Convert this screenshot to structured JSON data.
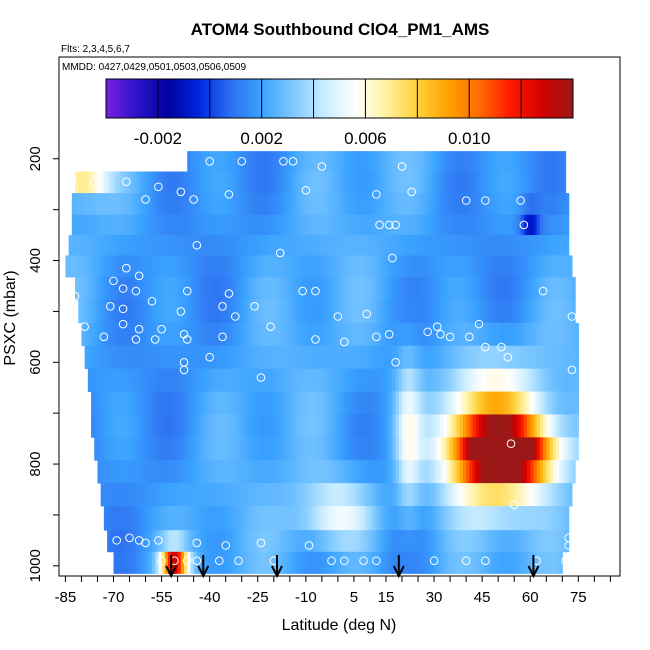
{
  "chart_data": {
    "type": "heatmap",
    "title": "ATOM4 Southbound ClO4_PM1_AMS",
    "flights_label": "Flts: 2,3,4,5,6,7",
    "dates_label": "MMDD: 0427,0429,0501,0503,0506,0509",
    "xlabel": "Latitude (deg N)",
    "ylabel": "PSXC (mbar)",
    "xlim": [
      -87,
      88
    ],
    "ylim": [
      1020,
      0
    ],
    "x_ticks": [
      -85,
      -70,
      -55,
      -40,
      -25,
      -10,
      5,
      15,
      30,
      45,
      60,
      75
    ],
    "x_tick_labels": [
      "-85",
      "-70",
      "-55",
      "-40",
      "-25",
      "-10",
      "5",
      "15",
      "30",
      "45",
      "60",
      "75"
    ],
    "y_ticks": [
      200,
      400,
      600,
      800,
      1000
    ],
    "y_tick_labels": [
      "200",
      "400",
      "600",
      "800",
      "1000"
    ],
    "colorbar": {
      "range": [
        -0.004,
        0.014
      ],
      "tick_values": [
        -0.002,
        0.002,
        0.006,
        0.01
      ],
      "tick_labels": [
        "-0.002",
        "0.002",
        "0.006",
        "0.010"
      ],
      "colors": [
        "#7a1fe0",
        "#2a14c8",
        "#0000a0",
        "#0028e0",
        "#2d6ff0",
        "#3aa2ff",
        "#7dc8ff",
        "#c8ecff",
        "#ffffff",
        "#fff1a0",
        "#ffd13a",
        "#ffa200",
        "#ff6a00",
        "#ff1a00",
        "#d20000",
        "#9b1818"
      ]
    },
    "pressure_levels": [
      205,
      245,
      290,
      330,
      370,
      410,
      455,
      500,
      545,
      590,
      635,
      680,
      725,
      770,
      815,
      860,
      905,
      955,
      990
    ],
    "latitude_extent_per_level": [
      [
        -47,
        71
      ],
      [
        -82,
        71
      ],
      [
        -83,
        72
      ],
      [
        -83,
        72
      ],
      [
        -84,
        72
      ],
      [
        -85,
        73
      ],
      [
        -82,
        74
      ],
      [
        -81,
        74
      ],
      [
        -80,
        75
      ],
      [
        -79,
        75
      ],
      [
        -78,
        75
      ],
      [
        -77,
        75
      ],
      [
        -77,
        75
      ],
      [
        -76,
        75
      ],
      [
        -75,
        74
      ],
      [
        -74,
        73
      ],
      [
        -73,
        72
      ],
      [
        -72,
        72
      ],
      [
        -70,
        70
      ]
    ],
    "field_features": [
      {
        "description": "background",
        "value": 0.002
      },
      {
        "description": "high-latitude north maximum",
        "lat": 53,
        "pressure": 780,
        "value": 0.013
      },
      {
        "description": "broad northern lower-troposphere enhancement",
        "lat": 47,
        "pressure": 750,
        "value": 0.0105
      },
      {
        "description": "southern upper-level enhancement",
        "lat": -80,
        "pressure": 240,
        "value": 0.0072
      },
      {
        "description": "near-surface southern maximum",
        "lat": -51,
        "pressure": 990,
        "value": 0.012
      },
      {
        "description": "lower-level tropical enhancement",
        "lat": 0,
        "pressure": 900,
        "value": 0.0055
      },
      {
        "description": "column near 20N",
        "lat": 22,
        "pressure": 750,
        "value": 0.005
      },
      {
        "description": "minimum near 60N upper levels",
        "lat": 60,
        "pressure": 320,
        "value": -0.001
      }
    ],
    "observation_markers": [
      {
        "lat": -40,
        "pressure": 205
      },
      {
        "lat": -30,
        "pressure": 205
      },
      {
        "lat": -17,
        "pressure": 205
      },
      {
        "lat": -14,
        "pressure": 205
      },
      {
        "lat": -5,
        "pressure": 215
      },
      {
        "lat": 20,
        "pressure": 215
      },
      {
        "lat": -83,
        "pressure": 240
      },
      {
        "lat": -76,
        "pressure": 245
      },
      {
        "lat": -66,
        "pressure": 245
      },
      {
        "lat": -56,
        "pressure": 255
      },
      {
        "lat": -49,
        "pressure": 265
      },
      {
        "lat": -34,
        "pressure": 270
      },
      {
        "lat": 12,
        "pressure": 270
      },
      {
        "lat": 23,
        "pressure": 265
      },
      {
        "lat": -10,
        "pressure": 262
      },
      {
        "lat": -60,
        "pressure": 280
      },
      {
        "lat": -45,
        "pressure": 280
      },
      {
        "lat": 40,
        "pressure": 282
      },
      {
        "lat": 46,
        "pressure": 282
      },
      {
        "lat": 57,
        "pressure": 282
      },
      {
        "lat": -44,
        "pressure": 370
      },
      {
        "lat": -18,
        "pressure": 385
      },
      {
        "lat": 13,
        "pressure": 330
      },
      {
        "lat": 16,
        "pressure": 330
      },
      {
        "lat": 18,
        "pressure": 330
      },
      {
        "lat": 58,
        "pressure": 330
      },
      {
        "lat": 17,
        "pressure": 395
      },
      {
        "lat": -66,
        "pressure": 415
      },
      {
        "lat": -62,
        "pressure": 430
      },
      {
        "lat": -70,
        "pressure": 440
      },
      {
        "lat": -67,
        "pressure": 455
      },
      {
        "lat": -63,
        "pressure": 460
      },
      {
        "lat": -47,
        "pressure": 460
      },
      {
        "lat": -34,
        "pressure": 465
      },
      {
        "lat": -7,
        "pressure": 460
      },
      {
        "lat": -11,
        "pressure": 460
      },
      {
        "lat": 64,
        "pressure": 460
      },
      {
        "lat": -82,
        "pressure": 470
      },
      {
        "lat": -71,
        "pressure": 490
      },
      {
        "lat": -67,
        "pressure": 495
      },
      {
        "lat": -58,
        "pressure": 480
      },
      {
        "lat": -49,
        "pressure": 500
      },
      {
        "lat": -36,
        "pressure": 490
      },
      {
        "lat": -32,
        "pressure": 510
      },
      {
        "lat": -26,
        "pressure": 490
      },
      {
        "lat": -79,
        "pressure": 530
      },
      {
        "lat": -67,
        "pressure": 525
      },
      {
        "lat": -62,
        "pressure": 535
      },
      {
        "lat": -55,
        "pressure": 535
      },
      {
        "lat": -48,
        "pressure": 545
      },
      {
        "lat": -21,
        "pressure": 530
      },
      {
        "lat": 0,
        "pressure": 510
      },
      {
        "lat": 9,
        "pressure": 505
      },
      {
        "lat": 31,
        "pressure": 530
      },
      {
        "lat": 44,
        "pressure": 525
      },
      {
        "lat": 73,
        "pressure": 510
      },
      {
        "lat": -73,
        "pressure": 550
      },
      {
        "lat": -63,
        "pressure": 555
      },
      {
        "lat": -57,
        "pressure": 555
      },
      {
        "lat": -47,
        "pressure": 555
      },
      {
        "lat": -36,
        "pressure": 550
      },
      {
        "lat": -7,
        "pressure": 555
      },
      {
        "lat": 2,
        "pressure": 560
      },
      {
        "lat": 12,
        "pressure": 550
      },
      {
        "lat": 16,
        "pressure": 545
      },
      {
        "lat": 28,
        "pressure": 540
      },
      {
        "lat": 32,
        "pressure": 545
      },
      {
        "lat": 35,
        "pressure": 550
      },
      {
        "lat": 41,
        "pressure": 550
      },
      {
        "lat": -48,
        "pressure": 600
      },
      {
        "lat": -40,
        "pressure": 590
      },
      {
        "lat": 18,
        "pressure": 600
      },
      {
        "lat": 46,
        "pressure": 570
      },
      {
        "lat": 51,
        "pressure": 570
      },
      {
        "lat": 53,
        "pressure": 590
      },
      {
        "lat": -48,
        "pressure": 615
      },
      {
        "lat": -24,
        "pressure": 630
      },
      {
        "lat": 73,
        "pressure": 615
      },
      {
        "lat": 54,
        "pressure": 760
      },
      {
        "lat": 55,
        "pressure": 880
      },
      {
        "lat": -69,
        "pressure": 950
      },
      {
        "lat": -65,
        "pressure": 945
      },
      {
        "lat": -62,
        "pressure": 950
      },
      {
        "lat": -60,
        "pressure": 955
      },
      {
        "lat": -56,
        "pressure": 950
      },
      {
        "lat": -44,
        "pressure": 955
      },
      {
        "lat": -35,
        "pressure": 960
      },
      {
        "lat": -24,
        "pressure": 955
      },
      {
        "lat": -9,
        "pressure": 960
      },
      {
        "lat": 72,
        "pressure": 945
      },
      {
        "lat": 72,
        "pressure": 960
      },
      {
        "lat": -55,
        "pressure": 990
      },
      {
        "lat": -51,
        "pressure": 990
      },
      {
        "lat": -47,
        "pressure": 990
      },
      {
        "lat": -44,
        "pressure": 990
      },
      {
        "lat": -37,
        "pressure": 990
      },
      {
        "lat": -31,
        "pressure": 990
      },
      {
        "lat": -20,
        "pressure": 990
      },
      {
        "lat": -2,
        "pressure": 990
      },
      {
        "lat": 2,
        "pressure": 990
      },
      {
        "lat": 8,
        "pressure": 990
      },
      {
        "lat": 12,
        "pressure": 990
      },
      {
        "lat": 30,
        "pressure": 990
      },
      {
        "lat": 40,
        "pressure": 990
      },
      {
        "lat": 46,
        "pressure": 990
      },
      {
        "lat": 62,
        "pressure": 990
      },
      {
        "lat": 71,
        "pressure": 990
      }
    ],
    "arrow_latitudes": [
      -52,
      -42,
      -19,
      19,
      61
    ]
  }
}
